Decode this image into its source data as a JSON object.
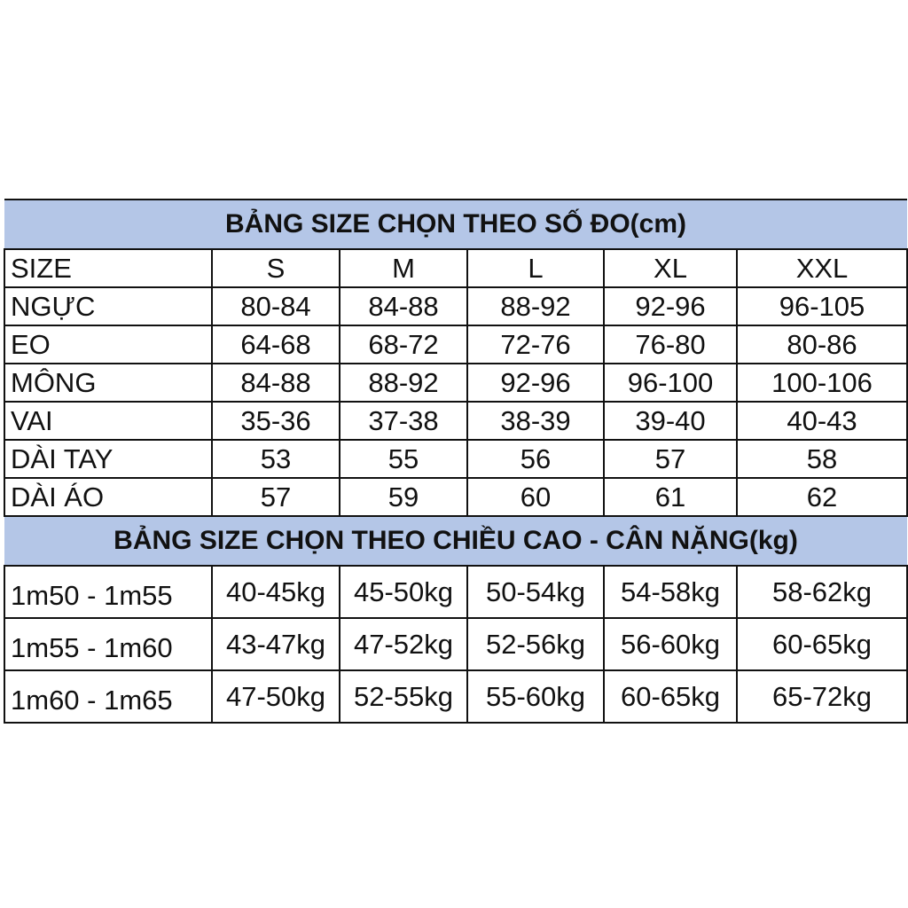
{
  "measure_table": {
    "title": "BẢNG SIZE CHỌN THEO SỐ ĐO(cm)",
    "header": [
      "SIZE",
      "S",
      "M",
      "L",
      "XL",
      "XXL"
    ],
    "rows": [
      [
        "NGỰC",
        "80-84",
        "84-88",
        "88-92",
        "92-96",
        "96-105"
      ],
      [
        "EO",
        "64-68",
        "68-72",
        "72-76",
        "76-80",
        "80-86"
      ],
      [
        "MÔNG",
        "84-88",
        "88-92",
        "92-96",
        "96-100",
        "100-106"
      ],
      [
        "VAI",
        "35-36",
        "37-38",
        "38-39",
        "39-40",
        "40-43"
      ],
      [
        "DÀI TAY",
        "53",
        "55",
        "56",
        "57",
        "58"
      ],
      [
        "DÀI ÁO",
        "57",
        "59",
        "60",
        "61",
        "62"
      ]
    ]
  },
  "weight_table": {
    "title": "BẢNG SIZE CHỌN THEO CHIỀU CAO - CÂN NẶNG(kg)",
    "rows": [
      [
        "1m50 - 1m55",
        "40-45kg",
        "45-50kg",
        "50-54kg",
        "54-58kg",
        "58-62kg"
      ],
      [
        "1m55 - 1m60",
        "43-47kg",
        "47-52kg",
        "52-56kg",
        "56-60kg",
        "60-65kg"
      ],
      [
        "1m60 - 1m65",
        "47-50kg",
        "52-55kg",
        "55-60kg",
        "60-65kg",
        "65-72kg"
      ]
    ]
  },
  "colors": {
    "title_band": "#b4c6e7",
    "border": "#111111"
  }
}
